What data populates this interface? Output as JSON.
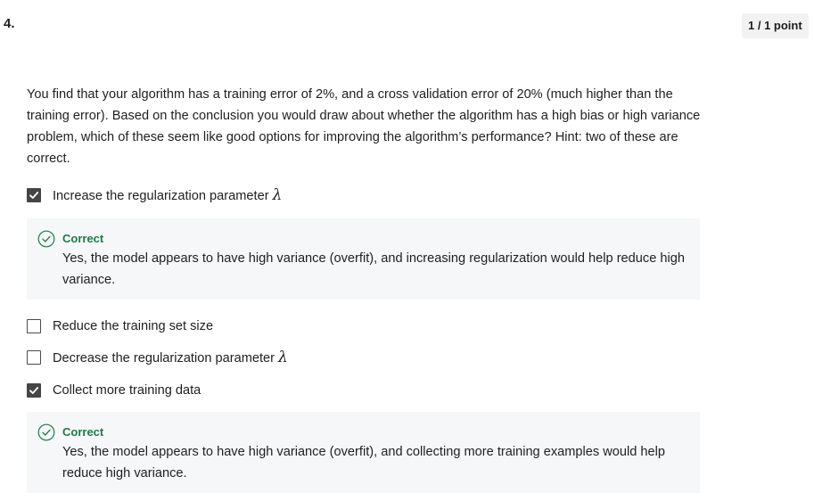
{
  "question": {
    "number": "4.",
    "points": "1 / 1 point",
    "prompt": "You find that your algorithm has a training error of 2%, and a cross validation error of 20% (much higher than the training error). Based on the conclusion you would draw about whether the algorithm has a high bias or high variance problem, which of these seem like good options for improving the algorithm’s performance? Hint: two of these are correct."
  },
  "options": [
    {
      "label": "Increase the regularization parameter",
      "symbol": "λ",
      "checked": true,
      "feedback_title": "Correct",
      "feedback_text": "Yes, the model appears to have high variance (overfit), and increasing regularization would help reduce high variance."
    },
    {
      "label": "Reduce the training set size",
      "checked": false
    },
    {
      "label": "Decrease the regularization parameter",
      "symbol": "λ",
      "checked": false
    },
    {
      "label": "Collect more training data",
      "checked": true,
      "feedback_title": "Correct",
      "feedback_text": "Yes, the model appears to have high variance (overfit), and collecting more training examples would help reduce high variance."
    }
  ],
  "colors": {
    "correct_green": "#1e7a4a",
    "feedback_bg": "#f5f7f8",
    "checkbox_checked": "#454545"
  },
  "icons": {
    "checkbox_checked": "check-icon",
    "feedback": "check-circle-icon"
  }
}
